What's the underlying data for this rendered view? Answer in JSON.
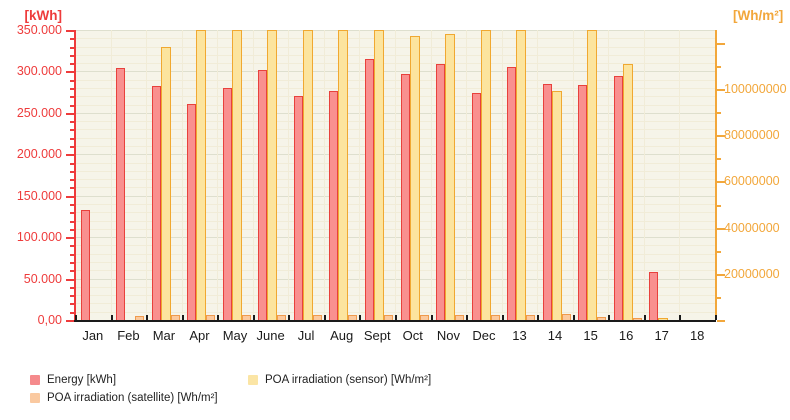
{
  "chart_data": {
    "type": "bar",
    "title": "",
    "categories": [
      "Jan",
      "Feb",
      "Mar",
      "Apr",
      "May",
      "June",
      "Jul",
      "Aug",
      "Sept",
      "Oct",
      "Nov",
      "Dec",
      "13",
      "14",
      "15",
      "16",
      "17",
      "18"
    ],
    "series": [
      {
        "name": "Energy [kWh]",
        "axis": "left",
        "unit": "kWh",
        "color": "#f9908f",
        "border_color": "#e8413c",
        "values": [
          133000,
          304000,
          282000,
          261000,
          280000,
          302000,
          270000,
          276000,
          315000,
          297000,
          309000,
          274000,
          305000,
          285000,
          284000,
          294000,
          58000,
          0
        ]
      },
      {
        "name": "POA irradiation (sensor) [Wh/m²]",
        "axis": "right",
        "unit": "Wh/m²",
        "color": "#fce49e",
        "border_color": "#f0a831",
        "values": [
          0,
          0,
          118000000,
          125500000,
          125500000,
          125500000,
          125500000,
          125500000,
          125500000,
          123000000,
          124000000,
          125500000,
          125500000,
          99000000,
          125500000,
          111000000,
          1000000,
          0
        ]
      },
      {
        "name": "POA irradiation (satellite) [Wh/m²]",
        "axis": "right",
        "unit": "Wh/m²",
        "color": "#fbc99d",
        "border_color": "#ef9a4d",
        "values": [
          0,
          1700000,
          2200000,
          2200000,
          2200000,
          2200000,
          2200000,
          2200000,
          2200000,
          2200000,
          2200000,
          2200000,
          2200000,
          2600000,
          1300000,
          900000,
          0,
          0
        ]
      }
    ],
    "left_axis": {
      "title": "[kWh]",
      "color": "#ee3b3b",
      "min": 0,
      "max": 350000,
      "minor_step": 10000,
      "major_step": 50000,
      "ticks": [
        {
          "value": 350000,
          "label": "350.000"
        },
        {
          "value": 300000,
          "label": "300.000"
        },
        {
          "value": 250000,
          "label": "250.000"
        },
        {
          "value": 200000,
          "label": "200.000"
        },
        {
          "value": 150000,
          "label": "150.000"
        },
        {
          "value": 100000,
          "label": "100.000"
        },
        {
          "value": 50000,
          "label": "50.000"
        },
        {
          "value": 0,
          "label": "0,00"
        }
      ]
    },
    "right_axis": {
      "title": "[Wh/m²]",
      "color": "#f2a73b",
      "min": 0,
      "max": 125500000,
      "minor_step": 10000000,
      "minor_max": 120000000,
      "major_step": 20000000,
      "ticks": [
        {
          "value": 100000000,
          "label": "100000000"
        },
        {
          "value": 80000000,
          "label": "80000000"
        },
        {
          "value": 60000000,
          "label": "60000000"
        },
        {
          "value": 40000000,
          "label": "40000000"
        },
        {
          "value": 20000000,
          "label": "20000000"
        }
      ]
    },
    "x_axis": {
      "color": "#1a1a1a",
      "label_color": "#1a1a1a"
    },
    "plot_style": {
      "bg": "#f6f4e9",
      "grid_minor": "#f1ecd8",
      "grid_major": "#dedfce"
    },
    "legend": [
      {
        "label": "Energy [kWh]",
        "color": "#f58a8c",
        "col": 0,
        "row": 0
      },
      {
        "label": "POA irradiation (satellite) [Wh/m²]",
        "color": "#fac9a0",
        "col": 0,
        "row": 1
      },
      {
        "label": "POA irradiation (sensor) [Wh/m²]",
        "color": "#fbe5a5",
        "col": 1,
        "row": 0
      }
    ],
    "layout_hints": {
      "legend_position": "bottom",
      "grid": "on",
      "bar_order_in_slot": [
        "energy",
        "sensor",
        "satellite"
      ]
    }
  }
}
